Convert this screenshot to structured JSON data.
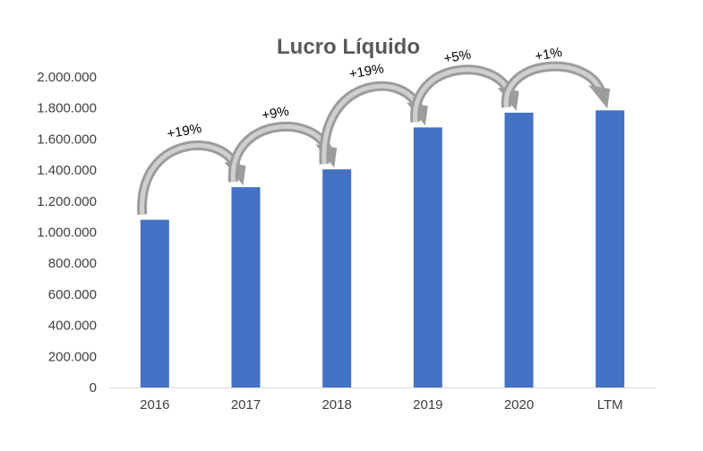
{
  "chart_data": {
    "type": "bar",
    "title": "Lucro Líquido",
    "xlabel": "",
    "ylabel": "",
    "categories": [
      "2016",
      "2017",
      "2018",
      "2019",
      "2020",
      "LTM"
    ],
    "values": [
      1080000,
      1290000,
      1405000,
      1675000,
      1770000,
      1785000
    ],
    "ylim": [
      0,
      2000000
    ],
    "yticks": [
      0,
      200000,
      400000,
      600000,
      800000,
      1000000,
      1200000,
      1400000,
      1600000,
      1800000,
      2000000
    ],
    "ytick_labels": [
      "0",
      "200.000",
      "400.000",
      "600.000",
      "800.000",
      "1.000.000",
      "1.200.000",
      "1.400.000",
      "1.600.000",
      "1.800.000",
      "2.000.000"
    ],
    "grid": false,
    "legend": "none",
    "annotations": [
      {
        "from": "2016",
        "to": "2017",
        "label": "+19%"
      },
      {
        "from": "2017",
        "to": "2018",
        "label": "+9%"
      },
      {
        "from": "2018",
        "to": "2019",
        "label": "+19%"
      },
      {
        "from": "2019",
        "to": "2020",
        "label": "+5%"
      },
      {
        "from": "2020",
        "to": "LTM",
        "label": "+1%"
      }
    ],
    "colors": {
      "bar": "#4472C4",
      "arrow": "#A6A6A6",
      "axis": "#D9D9D9"
    }
  }
}
